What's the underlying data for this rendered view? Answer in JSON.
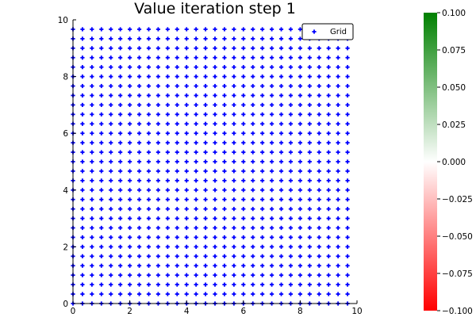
{
  "chart_data": {
    "type": "scatter",
    "title": "Value iteration step 1",
    "xlabel": "",
    "ylabel": "",
    "xlim": [
      0,
      10
    ],
    "ylim": [
      0,
      10
    ],
    "x_ticks": [
      0,
      2,
      4,
      6,
      8,
      10
    ],
    "y_ticks": [
      0,
      2,
      4,
      6,
      8,
      10
    ],
    "grid": false,
    "series": [
      {
        "name": "Grid",
        "marker": "cross",
        "color": "#0000ff",
        "x_start": 0,
        "x_step": 0.333333,
        "x_count": 30,
        "y_start": 0,
        "y_step": 0.333333,
        "y_count": 30
      }
    ],
    "legend": {
      "position": "top-right",
      "entries": [
        "Grid"
      ]
    },
    "colorbar": {
      "min": -0.1,
      "max": 0.1,
      "ticks": [
        "0.100",
        "0.075",
        "0.050",
        "0.025",
        "0.000",
        "−0.025",
        "−0.050",
        "−0.075",
        "−0.100"
      ],
      "colors": [
        "#ff0000",
        "#ffffff",
        "#008000"
      ]
    }
  }
}
